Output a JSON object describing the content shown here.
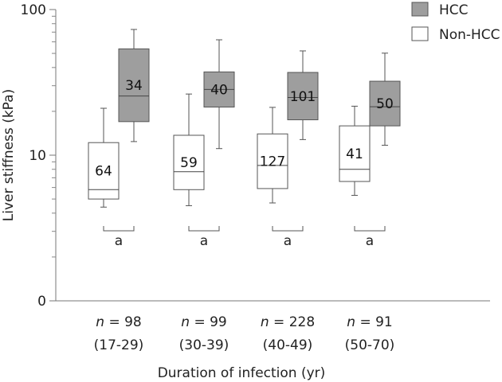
{
  "chart_data": {
    "type": "boxplot",
    "ylabel": "Liver stiffness (kPa)",
    "xlabel": "Duration of infection (yr)",
    "y_scale": "log",
    "y_tick_labels": [
      "0",
      "10",
      "100"
    ],
    "legend_position": "top-right",
    "groups": [
      {
        "n_prefix": "n",
        "n_text": " = 98",
        "range": "(17-29)",
        "sig": "a"
      },
      {
        "n_prefix": "n",
        "n_text": " = 99",
        "range": "(30-39)",
        "sig": "a"
      },
      {
        "n_prefix": "n",
        "n_text": " = 228",
        "range": "(40-49)",
        "sig": "a"
      },
      {
        "n_prefix": "n",
        "n_text": " = 91",
        "range": "(50-70)",
        "sig": "a"
      }
    ],
    "series": [
      {
        "name": "Non-HCC",
        "color": "#ffffff",
        "boxes": [
          {
            "label": "64",
            "whisker_low": 4.4,
            "q1": 5.0,
            "median": 5.8,
            "q3": 12.2,
            "whisker_high": 21.0
          },
          {
            "label": "59",
            "whisker_low": 4.5,
            "q1": 5.8,
            "median": 7.7,
            "q3": 13.7,
            "whisker_high": 26.3
          },
          {
            "label": "127",
            "whisker_low": 4.7,
            "q1": 5.9,
            "median": 8.5,
            "q3": 14.0,
            "whisker_high": 21.3
          },
          {
            "label": "41",
            "whisker_low": 5.3,
            "q1": 6.6,
            "median": 8.0,
            "q3": 15.9,
            "whisker_high": 21.7
          }
        ]
      },
      {
        "name": "HCC",
        "color": "#9e9e9e",
        "boxes": [
          {
            "label": "34",
            "whisker_low": 12.4,
            "q1": 17.0,
            "median": 25.5,
            "q3": 53.7,
            "whisker_high": 73.0
          },
          {
            "label": "40",
            "whisker_low": 11.1,
            "q1": 21.4,
            "median": 28.3,
            "q3": 37.3,
            "whisker_high": 62.0
          },
          {
            "label": "101",
            "whisker_low": 12.8,
            "q1": 17.5,
            "median": 24.9,
            "q3": 37.0,
            "whisker_high": 52.0
          },
          {
            "label": "50",
            "whisker_low": 11.7,
            "q1": 15.9,
            "median": 21.5,
            "q3": 32.2,
            "whisker_high": 50.2
          }
        ]
      }
    ]
  }
}
